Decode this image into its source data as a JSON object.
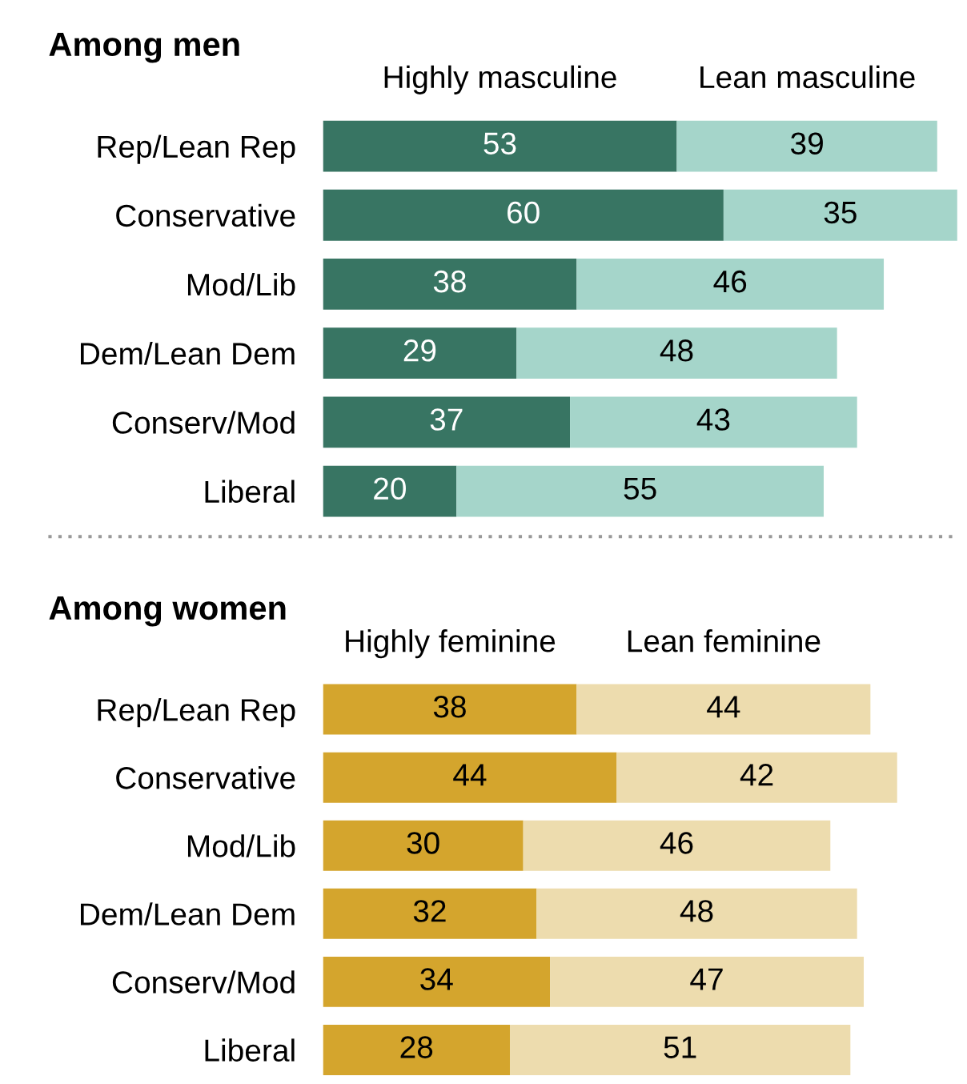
{
  "chart_data": [
    {
      "type": "bar",
      "orientation": "horizontal",
      "stacked": true,
      "data_labels": true,
      "legend": "top",
      "title": "Among men",
      "categories": [
        "Rep/Lean Rep",
        "Conservative",
        "Mod/Lib",
        "Dem/Lean Dem",
        "Conserv/Mod",
        "Liberal"
      ],
      "series": [
        {
          "name": "Highly masculine",
          "color": "#387563",
          "values": [
            53,
            60,
            38,
            29,
            37,
            20
          ]
        },
        {
          "name": "Lean masculine",
          "color": "#a5d5ca",
          "values": [
            39,
            35,
            46,
            48,
            43,
            55
          ]
        }
      ]
    },
    {
      "type": "bar",
      "orientation": "horizontal",
      "stacked": true,
      "data_labels": true,
      "legend": "top",
      "title": "Among women",
      "categories": [
        "Rep/Lean Rep",
        "Conservative",
        "Mod/Lib",
        "Dem/Lean Dem",
        "Conserv/Mod",
        "Liberal"
      ],
      "series": [
        {
          "name": "Highly feminine",
          "color": "#d4a52d",
          "values": [
            38,
            44,
            30,
            32,
            34,
            28
          ]
        },
        {
          "name": "Lean feminine",
          "color": "#eddcae",
          "values": [
            44,
            42,
            46,
            48,
            47,
            51
          ]
        }
      ]
    }
  ]
}
